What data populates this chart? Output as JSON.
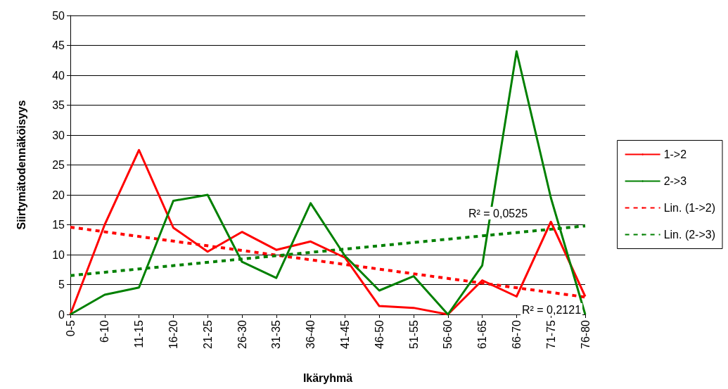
{
  "chart_data": {
    "type": "line",
    "xlabel": "Ikäryhmä",
    "ylabel": "Siirtymätodennäköisyys",
    "categories": [
      "0-5",
      "6-10",
      "11-15",
      "16-20",
      "21-25",
      "26-30",
      "31-35",
      "36-40",
      "41-45",
      "46-50",
      "51-55",
      "56-60",
      "61-65",
      "66-70",
      "71-75",
      "76-80"
    ],
    "series": [
      {
        "name": "1->2",
        "color": "#ff0000",
        "line_style": "solid",
        "values": [
          0,
          15,
          27.5,
          14.5,
          10.5,
          13.8,
          10.8,
          12.2,
          9.5,
          1.4,
          1.1,
          0,
          5.7,
          3,
          15.5,
          3
        ]
      },
      {
        "name": "2->3",
        "color": "#008000",
        "line_style": "solid",
        "values": [
          0,
          3.3,
          4.5,
          19,
          20,
          8.8,
          6.1,
          18.6,
          9.8,
          4,
          6.4,
          0,
          8.2,
          44,
          19.5,
          0
        ]
      },
      {
        "name": "Lin. (1->2)",
        "color": "#ff0000",
        "line_style": "dashed",
        "x": [
          "0-5",
          "76-80"
        ],
        "values": [
          14.6,
          2.9
        ]
      },
      {
        "name": "Lin. (2->3)",
        "color": "#008000",
        "line_style": "dashed",
        "x": [
          "0-5",
          "76-80"
        ],
        "values": [
          6.5,
          14.8
        ]
      }
    ],
    "annotations": [
      "R² = 0,0525",
      "R² = 0,2121"
    ],
    "ylim": [
      0,
      50
    ],
    "yticks": [
      0,
      5,
      10,
      15,
      20,
      25,
      30,
      35,
      40,
      45,
      50
    ],
    "grid": "y",
    "legend": "right",
    "marker": "none"
  }
}
